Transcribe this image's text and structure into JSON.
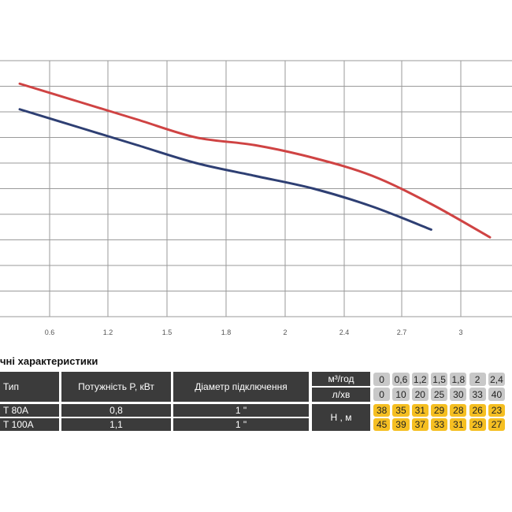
{
  "chart_data": {
    "type": "line",
    "x_ticks": [
      "0.6",
      "1.2",
      "1.5",
      "1.8",
      "2",
      "2.4",
      "2.7",
      "3"
    ],
    "series": [
      {
        "color": "#cf4343",
        "points": [
          [
            0,
            9.1
          ],
          [
            1,
            8.4
          ],
          [
            2,
            7.7
          ],
          [
            3,
            7.0
          ],
          [
            4,
            6.7
          ],
          [
            5,
            6.2
          ],
          [
            6,
            5.5
          ],
          [
            7,
            4.4
          ],
          [
            8,
            3.1
          ]
        ]
      },
      {
        "color": "#2e3f73",
        "points": [
          [
            0,
            8.1
          ],
          [
            1,
            7.4
          ],
          [
            2,
            6.7
          ],
          [
            3,
            6.0
          ],
          [
            4,
            5.5
          ],
          [
            5,
            5.0
          ],
          [
            6,
            4.3
          ],
          [
            7,
            3.4
          ]
        ]
      }
    ]
  },
  "table": {
    "section_title": "чні характеристики",
    "headers": {
      "type": "Тип",
      "power": "Потужність  P, кВт",
      "diameter": "Діаметр підключення"
    },
    "flow_labels": {
      "m3h": "м³/год",
      "lmin": "л/хв"
    },
    "head_label": "Н , м",
    "flow_m3h": [
      "0",
      "0,6",
      "1,2",
      "1,5",
      "1,8",
      "2",
      "2,4"
    ],
    "flow_lmin": [
      "0",
      "10",
      "20",
      "25",
      "30",
      "33",
      "40"
    ],
    "rows": [
      {
        "type": "Т 80А",
        "power": "0,8",
        "diameter": "1 \"",
        "head": [
          "38",
          "35",
          "31",
          "29",
          "28",
          "26",
          "23"
        ]
      },
      {
        "type": "Т 100А",
        "power": "1,1",
        "diameter": "1 \"",
        "head": [
          "45",
          "39",
          "37",
          "33",
          "31",
          "29",
          "27"
        ]
      }
    ]
  },
  "colors": {
    "red_curve": "#cf4343",
    "blue_curve": "#2e3f73",
    "header_bg": "#3b3b3b",
    "flow_cell": "#c8c8c8",
    "head_cell": "#f5bf22"
  }
}
